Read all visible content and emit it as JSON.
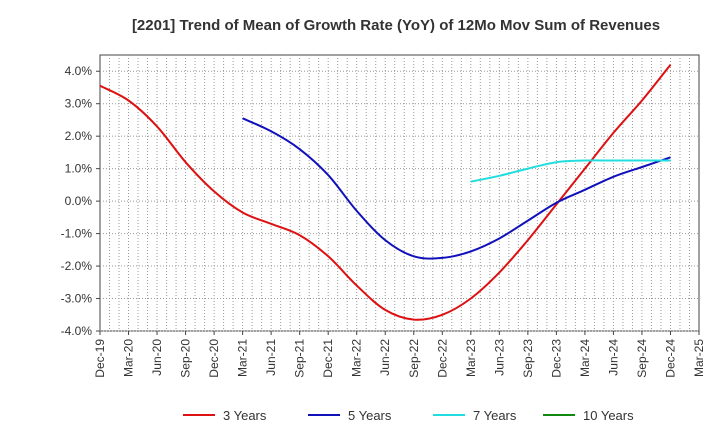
{
  "chart_data": {
    "type": "line",
    "title": "[2201]  Trend of Mean of Growth Rate (YoY) of 12Mo Mov Sum of Revenues",
    "xlabel": "",
    "ylabel": "",
    "ylim": [
      -4.0,
      4.5
    ],
    "yticks": [
      4.0,
      3.0,
      2.0,
      1.0,
      0.0,
      -1.0,
      -2.0,
      -3.0,
      -4.0
    ],
    "ytick_labels": [
      "4.0%",
      "3.0%",
      "2.0%",
      "1.0%",
      "0.0%",
      "-1.0%",
      "-2.0%",
      "-3.0%",
      "-4.0%"
    ],
    "x_categories": [
      "Dec-19",
      "Mar-20",
      "Jun-20",
      "Sep-20",
      "Dec-20",
      "Mar-21",
      "Jun-21",
      "Sep-21",
      "Dec-21",
      "Mar-22",
      "Jun-22",
      "Sep-22",
      "Dec-22",
      "Mar-23",
      "Jun-23",
      "Sep-23",
      "Dec-23",
      "Mar-24",
      "Jun-24",
      "Sep-24",
      "Dec-24",
      "Mar-25"
    ],
    "grid": true,
    "series": [
      {
        "name": "3 Years",
        "color": "#dd1111",
        "points": [
          [
            0,
            3.55
          ],
          [
            1,
            3.1
          ],
          [
            2,
            2.3
          ],
          [
            3,
            1.2
          ],
          [
            4,
            0.3
          ],
          [
            5,
            -0.35
          ],
          [
            6,
            -0.7
          ],
          [
            7,
            -1.05
          ],
          [
            8,
            -1.7
          ],
          [
            9,
            -2.6
          ],
          [
            10,
            -3.35
          ],
          [
            11,
            -3.65
          ],
          [
            12,
            -3.5
          ],
          [
            13,
            -3.0
          ],
          [
            14,
            -2.2
          ],
          [
            15,
            -1.2
          ],
          [
            16,
            -0.1
          ],
          [
            17,
            1.0
          ],
          [
            18,
            2.1
          ],
          [
            19,
            3.1
          ],
          [
            20,
            4.2
          ]
        ]
      },
      {
        "name": "5 Years",
        "color": "#1111bb",
        "points": [
          [
            5,
            2.55
          ],
          [
            6,
            2.15
          ],
          [
            7,
            1.6
          ],
          [
            8,
            0.8
          ],
          [
            9,
            -0.3
          ],
          [
            10,
            -1.2
          ],
          [
            11,
            -1.7
          ],
          [
            12,
            -1.75
          ],
          [
            13,
            -1.55
          ],
          [
            14,
            -1.15
          ],
          [
            15,
            -0.6
          ],
          [
            16,
            -0.05
          ],
          [
            17,
            0.35
          ],
          [
            18,
            0.75
          ],
          [
            19,
            1.05
          ],
          [
            20,
            1.35
          ]
        ]
      },
      {
        "name": "7 Years",
        "color": "#22dddd",
        "points": [
          [
            13,
            0.6
          ],
          [
            14,
            0.78
          ],
          [
            15,
            1.0
          ],
          [
            16,
            1.2
          ],
          [
            17,
            1.25
          ],
          [
            18,
            1.25
          ],
          [
            19,
            1.25
          ],
          [
            20,
            1.25
          ]
        ]
      },
      {
        "name": "10 Years",
        "color": "#118811",
        "points": []
      }
    ],
    "legend_position": "bottom"
  }
}
